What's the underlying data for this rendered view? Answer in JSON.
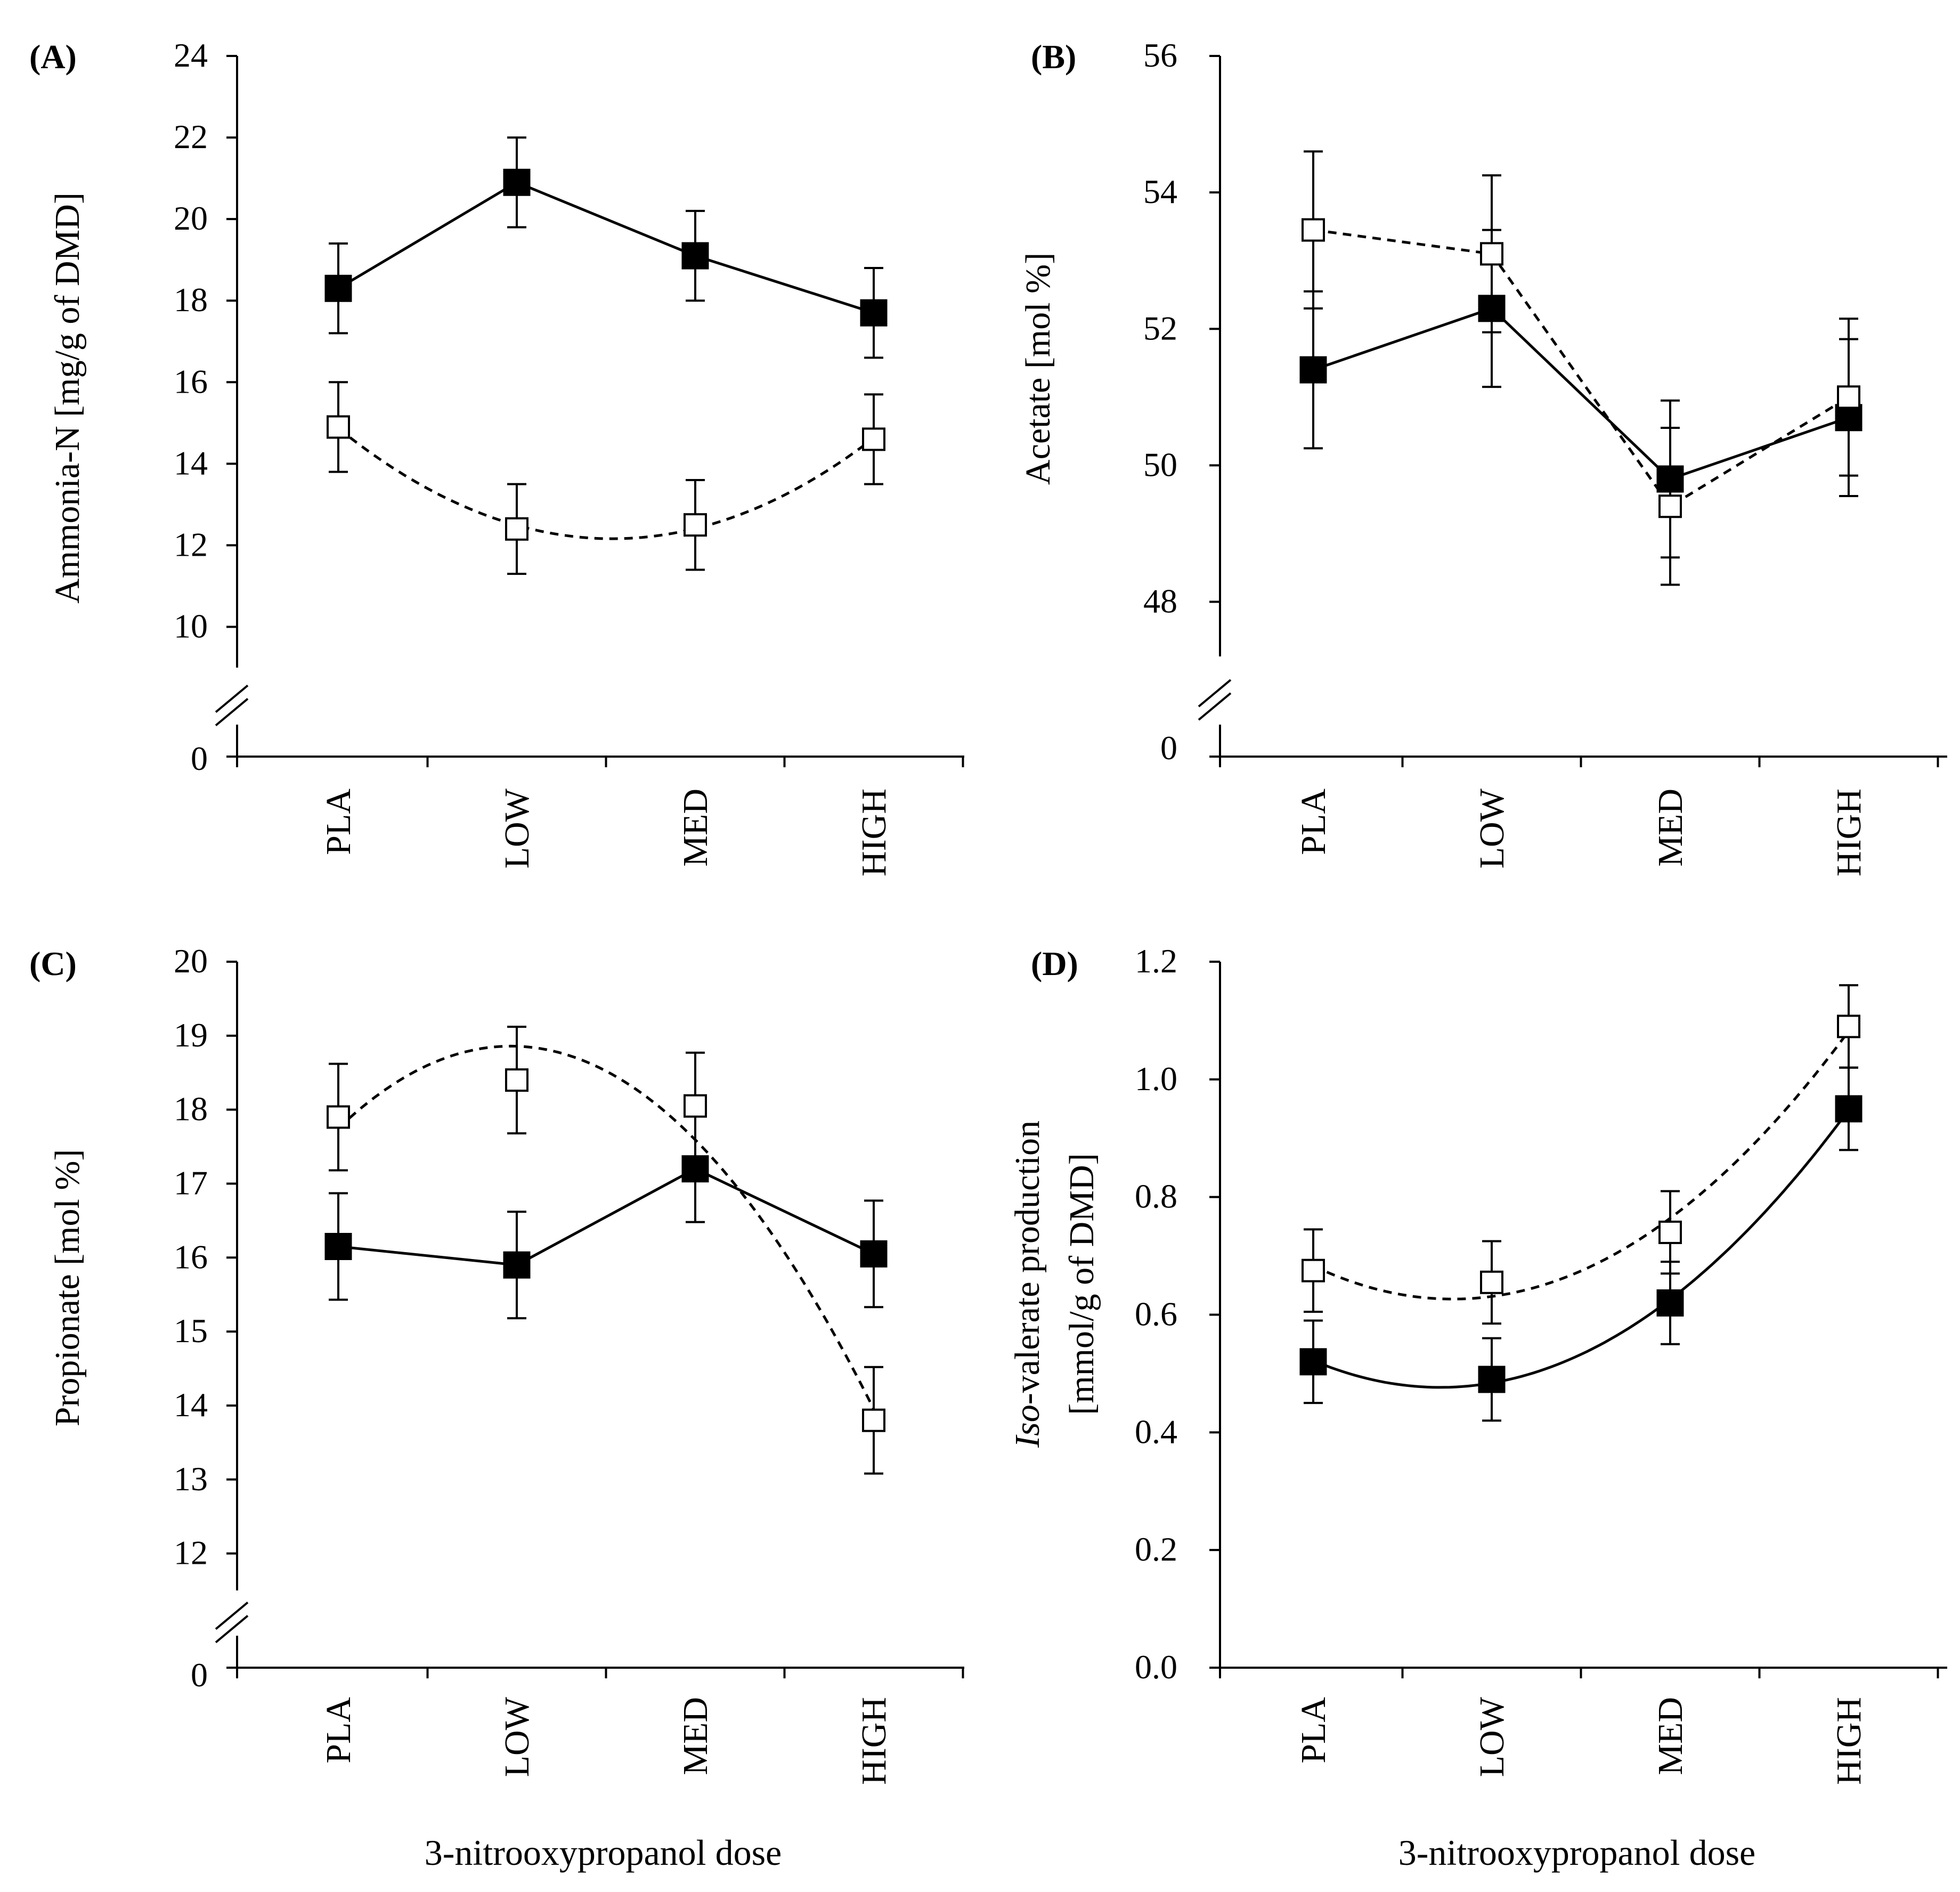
{
  "x_title": "3-nitrooxypropanol dose",
  "chart_data": [
    {
      "type": "line",
      "id": "A",
      "panel_label": "(A)",
      "ylabel": "Ammonia-N [mg/g of DMD]",
      "ylabel_lines": [
        "Ammonia-N [mg/g of DMD]"
      ],
      "categories": [
        "PLA",
        "LOW",
        "MED",
        "HIGH"
      ],
      "yticks": [
        10,
        12,
        14,
        16,
        18,
        20,
        22,
        24
      ],
      "ylim": [
        9,
        24
      ],
      "axis_break": true,
      "break_tick": "0",
      "series": [
        {
          "name": "filled",
          "marker": "filled-square",
          "line": "solid",
          "fit": "connect",
          "values": [
            18.3,
            20.9,
            19.1,
            17.7
          ],
          "errors": [
            1.1,
            1.1,
            1.1,
            1.1
          ]
        },
        {
          "name": "open",
          "marker": "open-square",
          "line": "dashed",
          "fit": "quadratic",
          "values": [
            14.9,
            12.4,
            12.5,
            14.6
          ],
          "errors": [
            1.1,
            1.1,
            1.1,
            1.1
          ]
        }
      ]
    },
    {
      "type": "line",
      "id": "B",
      "panel_label": "(B)",
      "ylabel": "Acetate [mol %]",
      "ylabel_lines": [
        "Acetate [mol %]"
      ],
      "categories": [
        "PLA",
        "LOW",
        "MED",
        "HIGH"
      ],
      "yticks": [
        48,
        50,
        52,
        54,
        56
      ],
      "ylim": [
        47.2,
        56
      ],
      "axis_break": true,
      "break_tick": "0",
      "series": [
        {
          "name": "filled",
          "marker": "filled-square",
          "line": "solid",
          "fit": "connect",
          "values": [
            51.4,
            52.3,
            49.8,
            50.7
          ],
          "errors": [
            1.15,
            1.15,
            1.15,
            1.15
          ]
        },
        {
          "name": "open",
          "marker": "open-square",
          "line": "dashed",
          "fit": "connect",
          "values": [
            53.45,
            53.1,
            49.4,
            51.0
          ],
          "errors": [
            1.15,
            1.15,
            1.15,
            1.15
          ]
        }
      ]
    },
    {
      "type": "line",
      "id": "C",
      "panel_label": "(C)",
      "ylabel": "Propionate [mol %]",
      "ylabel_lines": [
        "Propionate [mol %]"
      ],
      "categories": [
        "PLA",
        "LOW",
        "MED",
        "HIGH"
      ],
      "yticks": [
        12,
        13,
        14,
        15,
        16,
        17,
        18,
        19,
        20
      ],
      "ylim": [
        11.5,
        20
      ],
      "axis_break": true,
      "break_tick": "0",
      "series": [
        {
          "name": "filled",
          "marker": "filled-square",
          "line": "solid",
          "fit": "connect",
          "values": [
            16.15,
            15.9,
            17.2,
            16.05
          ],
          "errors": [
            0.72,
            0.72,
            0.72,
            0.72
          ]
        },
        {
          "name": "open",
          "marker": "open-square",
          "line": "dashed",
          "fit": "quadratic",
          "values": [
            17.9,
            18.4,
            18.05,
            13.8
          ],
          "errors": [
            0.72,
            0.72,
            0.72,
            0.72
          ]
        }
      ]
    },
    {
      "type": "line",
      "id": "D",
      "panel_label": "(D)",
      "ylabel": "Iso-valerate production [mmol/g of DMD]",
      "ylabel_lines": [
        "Iso-valerate production",
        "[mmol/g of DMD]"
      ],
      "ylabel_italic": "Iso",
      "categories": [
        "PLA",
        "LOW",
        "MED",
        "HIGH"
      ],
      "yticks": [
        "0.0",
        "0.2",
        "0.4",
        "0.6",
        "0.8",
        "1.0",
        "1.2"
      ],
      "ylim": [
        0,
        1.2
      ],
      "axis_break": false,
      "series": [
        {
          "name": "filled",
          "marker": "filled-square",
          "line": "solid",
          "fit": "quadratic",
          "values": [
            0.52,
            0.49,
            0.62,
            0.95
          ],
          "errors": [
            0.07,
            0.07,
            0.07,
            0.07
          ]
        },
        {
          "name": "open",
          "marker": "open-square",
          "line": "dashed",
          "fit": "quadratic",
          "values": [
            0.675,
            0.655,
            0.74,
            1.09
          ],
          "errors": [
            0.07,
            0.07,
            0.07,
            0.07
          ]
        }
      ]
    }
  ]
}
